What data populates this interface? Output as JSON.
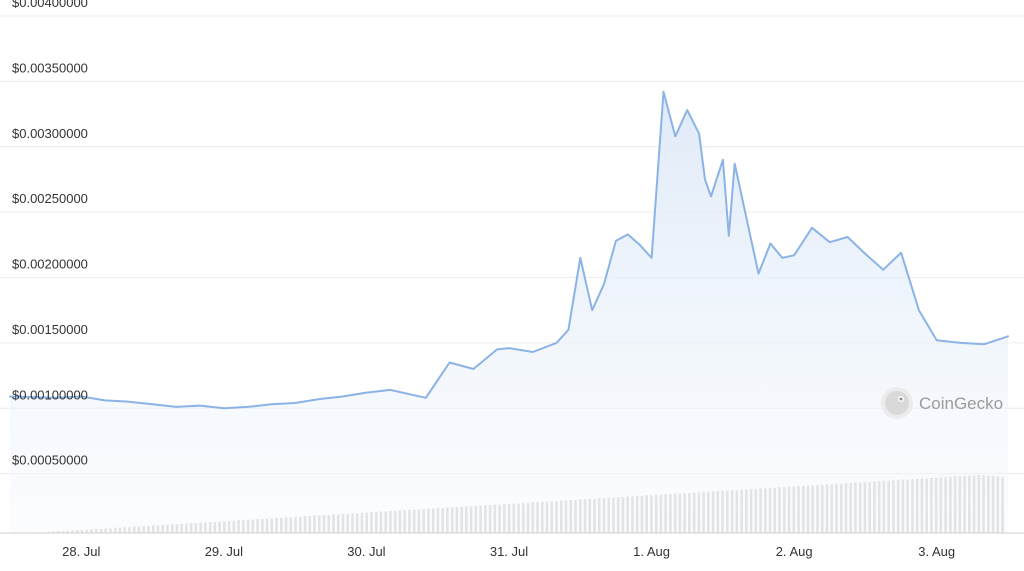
{
  "watermark": "CoinGecko",
  "colors": {
    "line": "#8bb3e6",
    "area_top": "#dce8f7",
    "volume": "#d5d5d5",
    "grid": "#ececec"
  },
  "chart_data": {
    "type": "area",
    "title": "",
    "xlabel": "",
    "ylabel": "",
    "ylim": [
      0,
      0.004
    ],
    "y_ticks": [
      {
        "value": 0.0005,
        "label": "$0.00050000"
      },
      {
        "value": 0.001,
        "label": "$0.00100000"
      },
      {
        "value": 0.0015,
        "label": "$0.00150000"
      },
      {
        "value": 0.002,
        "label": "$0.00200000"
      },
      {
        "value": 0.0025,
        "label": "$0.00250000"
      },
      {
        "value": 0.003,
        "label": "$0.00300000"
      },
      {
        "value": 0.0035,
        "label": "$0.00350000"
      },
      {
        "value": 0.004,
        "label": "$0.00400000"
      }
    ],
    "x_ticks": [
      {
        "value": "Jul 28",
        "label": "28. Jul"
      },
      {
        "value": "Jul 29",
        "label": "29. Jul"
      },
      {
        "value": "Jul 30",
        "label": "30. Jul"
      },
      {
        "value": "Jul 31",
        "label": "31. Jul"
      },
      {
        "value": "Aug 1",
        "label": "1. Aug"
      },
      {
        "value": "Aug 2",
        "label": "2. Aug"
      },
      {
        "value": "Aug 3",
        "label": "3. Aug"
      }
    ],
    "x_range": [
      "Jul 27 12:00",
      "Aug 3 12:00"
    ],
    "grid": true,
    "series": [
      {
        "type": "line",
        "x": [
          "Jul 27 12:00",
          "Jul 27 20:00",
          "Jul 28 00:00",
          "Jul 28 04:00",
          "Jul 28 08:00",
          "Jul 28 12:00",
          "Jul 28 16:00",
          "Jul 28 20:00",
          "Jul 29 00:00",
          "Jul 29 04:00",
          "Jul 29 08:00",
          "Jul 29 12:00",
          "Jul 29 16:00",
          "Jul 29 20:00",
          "Jul 30 00:00",
          "Jul 30 04:00",
          "Jul 30 08:00",
          "Jul 30 10:00",
          "Jul 30 14:00",
          "Jul 30 18:00",
          "Jul 30 22:00",
          "Jul 31 00:00",
          "Jul 31 04:00",
          "Jul 31 08:00",
          "Jul 31 10:00",
          "Jul 31 12:00",
          "Jul 31 14:00",
          "Jul 31 16:00",
          "Jul 31 18:00",
          "Jul 31 20:00",
          "Jul 31 22:00",
          "Aug 1 00:00",
          "Aug 1 02:00",
          "Aug 1 04:00",
          "Aug 1 06:00",
          "Aug 1 08:00",
          "Aug 1 09:00",
          "Aug 1 10:00",
          "Aug 1 12:00",
          "Aug 1 13:00",
          "Aug 1 14:00",
          "Aug 1 16:00",
          "Aug 1 18:00",
          "Aug 1 20:00",
          "Aug 1 22:00",
          "Aug 2 00:00",
          "Aug 2 03:00",
          "Aug 2 06:00",
          "Aug 2 09:00",
          "Aug 2 12:00",
          "Aug 2 15:00",
          "Aug 2 18:00",
          "Aug 2 21:00",
          "Aug 3 00:00",
          "Aug 3 04:00",
          "Aug 3 08:00",
          "Aug 3 10:00",
          "Aug 3 12:00"
        ],
        "y": [
          0.00109,
          0.00108,
          0.00109,
          0.00106,
          0.00105,
          0.00103,
          0.00101,
          0.00102,
          0.001,
          0.00101,
          0.00103,
          0.00104,
          0.00107,
          0.00109,
          0.00112,
          0.00114,
          0.0011,
          0.00108,
          0.00135,
          0.0013,
          0.00145,
          0.00146,
          0.00143,
          0.0015,
          0.0016,
          0.00215,
          0.00175,
          0.00195,
          0.00228,
          0.00233,
          0.00225,
          0.00215,
          0.00342,
          0.00308,
          0.00328,
          0.0031,
          0.00275,
          0.00262,
          0.0029,
          0.00232,
          0.00287,
          0.00245,
          0.00203,
          0.00226,
          0.00215,
          0.00217,
          0.00238,
          0.00227,
          0.00231,
          0.00218,
          0.00206,
          0.00219,
          0.00175,
          0.00152,
          0.0015,
          0.00149,
          0.00152,
          0.00155
        ]
      },
      {
        "type": "bar",
        "name": "",
        "note_units": "relative volume (no axis shown)",
        "values": [
          0.01,
          0.01,
          0.02,
          0.02,
          0.03,
          0.03,
          0.04,
          0.04,
          0.05,
          0.05,
          0.06,
          0.06,
          0.07,
          0.07,
          0.08,
          0.08,
          0.09,
          0.09,
          0.1,
          0.1,
          0.11,
          0.11,
          0.12,
          0.12,
          0.13,
          0.13,
          0.14,
          0.14,
          0.15,
          0.15,
          0.16,
          0.16,
          0.17,
          0.17,
          0.18,
          0.18,
          0.19,
          0.19,
          0.2,
          0.2,
          0.21,
          0.21,
          0.22,
          0.22,
          0.23,
          0.23,
          0.24,
          0.24,
          0.25,
          0.25,
          0.26,
          0.26,
          0.27,
          0.27,
          0.28,
          0.28,
          0.29,
          0.29,
          0.3,
          0.3,
          0.31,
          0.31,
          0.32,
          0.32,
          0.33,
          0.33,
          0.34,
          0.34,
          0.35,
          0.35,
          0.36,
          0.36,
          0.37,
          0.37,
          0.38,
          0.38,
          0.39,
          0.39,
          0.4,
          0.4,
          0.41,
          0.41,
          0.42,
          0.42,
          0.43,
          0.43,
          0.44,
          0.44,
          0.45,
          0.45,
          0.46,
          0.46,
          0.47,
          0.47,
          0.48,
          0.48,
          0.49,
          0.49,
          0.5,
          0.5,
          0.51,
          0.51,
          0.52,
          0.52,
          0.53,
          0.53,
          0.54,
          0.54,
          0.55,
          0.55,
          0.56,
          0.56,
          0.57,
          0.57,
          0.58,
          0.58,
          0.59,
          0.59,
          0.6,
          0.6,
          0.61,
          0.61,
          0.62,
          0.62,
          0.63,
          0.63,
          0.64,
          0.64,
          0.65,
          0.65,
          0.66,
          0.66,
          0.67,
          0.67,
          0.68,
          0.68,
          0.69,
          0.69,
          0.7,
          0.7,
          0.71,
          0.71,
          0.72,
          0.72,
          0.73,
          0.73,
          0.74,
          0.74,
          0.75,
          0.75,
          0.76,
          0.76,
          0.77,
          0.77,
          0.78,
          0.78,
          0.79,
          0.79,
          0.8,
          0.8,
          0.81,
          0.81,
          0.82,
          0.82,
          0.83,
          0.83,
          0.84,
          0.84,
          0.85,
          0.85,
          0.86,
          0.86,
          0.87,
          0.87,
          0.88,
          0.88,
          0.89,
          0.89,
          0.9,
          0.9,
          0.91,
          0.91,
          0.92,
          0.92,
          0.93,
          0.93,
          0.94,
          0.94,
          0.95,
          0.95,
          0.96,
          0.96,
          0.97,
          0.97,
          0.98,
          0.98,
          0.99,
          0.99,
          1.0,
          1.0,
          0.99,
          0.98,
          0.97,
          0.96
        ]
      }
    ]
  }
}
